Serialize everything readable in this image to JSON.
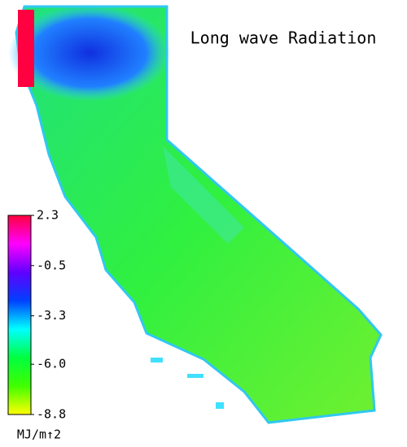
{
  "title": "Long wave Radiation",
  "colorbar": {
    "lim": [
      -8.8,
      2.3
    ],
    "ticks": [
      2.3,
      -0.5,
      -3.3,
      {
        "value": -6,
        "label": "-6.0"
      },
      -8.8
    ],
    "colors": [
      "#ff0040",
      "#ff00ff",
      "#6000ff",
      "#0040ff",
      "#00ffff",
      "#00ff40",
      "#40ff00",
      "#ffff00"
    ],
    "unit": "MJ/m↑2"
  }
}
